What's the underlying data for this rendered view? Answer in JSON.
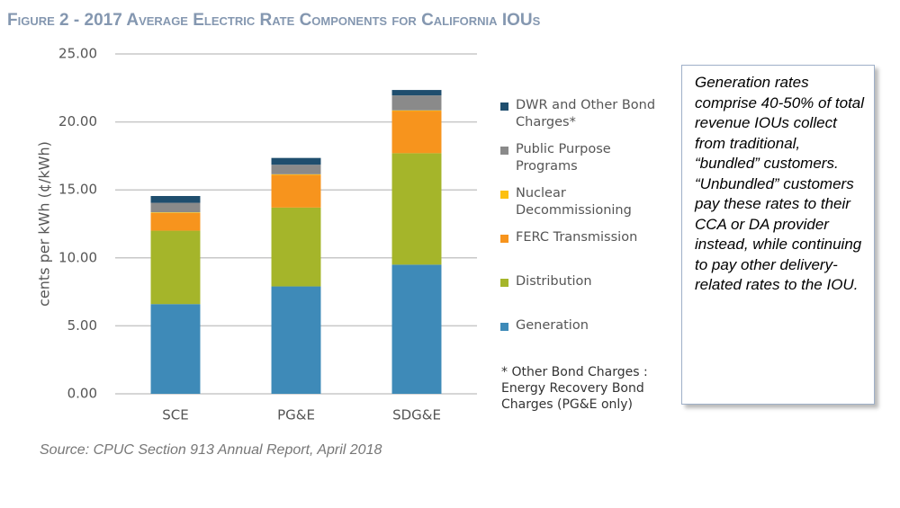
{
  "chart_data": {
    "type": "stacked_bar",
    "title": "Figure 2 - 2017 Average Electric Rate Components for California IOUs",
    "y_label": "cents per kWh (¢/kWh)",
    "categories": [
      "SCE",
      "PG&E",
      "SDG&E"
    ],
    "series": [
      {
        "name": "Generation",
        "color": "#3e8ab8",
        "values": [
          6.6,
          7.9,
          9.5
        ]
      },
      {
        "name": "Distribution",
        "color": "#a5b52a",
        "values": [
          5.4,
          5.8,
          8.2
        ]
      },
      {
        "name": "FERC Transmission",
        "color": "#f7941d",
        "values": [
          1.3,
          2.4,
          3.1
        ]
      },
      {
        "name": "Nuclear Decommissioning",
        "color": "#fdc010",
        "values": [
          0.05,
          0.05,
          0.05
        ]
      },
      {
        "name": "Public Purpose Programs",
        "color": "#8a8a8a",
        "values": [
          0.7,
          0.7,
          1.1
        ]
      },
      {
        "name": "DWR and Other Bond Charges*",
        "color": "#1f4e6e",
        "values": [
          0.5,
          0.5,
          0.4
        ]
      }
    ],
    "ylim": [
      0,
      25
    ],
    "yticks": [
      {
        "value": 0,
        "label": "0.00"
      },
      {
        "value": 5,
        "label": "5.00"
      },
      {
        "value": 10,
        "label": "10.00"
      },
      {
        "value": 15,
        "label": "15.00"
      },
      {
        "value": 20,
        "label": "20.00"
      },
      {
        "value": 25,
        "label": "25.00"
      }
    ],
    "grid": true,
    "legend_note": "* Other Bond Charges : Energy Recovery Bond Charges (PG&E only)",
    "source": "Source: CPUC Section 913 Annual Report, April 2018",
    "annotation": "Generation rates comprise 40-50% of total revenue IOUs collect from traditional, “bundled” customers. “Unbundled” customers pay these rates to their CCA or DA provider instead, while continuing to pay other delivery-related rates to the IOU."
  }
}
